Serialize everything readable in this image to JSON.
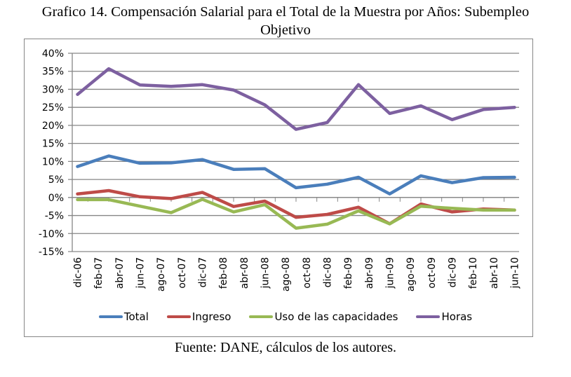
{
  "title_line1": "Grafico 14. Compensación Salarial para el Total de la Muestra por Años: Subempleo",
  "title_line2": "Objetivo",
  "source": "Fuente: DANE, cálculos de los autores.",
  "chart_data": {
    "type": "line",
    "title": "Compensación Salarial para el Total de la Muestra por Años: Subempleo Objetivo",
    "xlabel": "",
    "ylabel": "",
    "ylim": [
      -15,
      40
    ],
    "y_ticks": [
      -15,
      -10,
      -5,
      0,
      5,
      10,
      15,
      20,
      25,
      30,
      35,
      40
    ],
    "y_tick_format": "percent",
    "grid": true,
    "legend_position": "bottom",
    "x_tick_labels": [
      "dic-06",
      "feb-07",
      "abr-07",
      "jun-07",
      "ago-07",
      "oct-07",
      "dic-07",
      "feb-08",
      "abr-08",
      "jun-08",
      "ago-08",
      "oct-08",
      "dic-08",
      "feb-09",
      "abr-09",
      "jun-09",
      "ago-09",
      "oct-09",
      "dic-09",
      "feb-10",
      "abr-10",
      "jun-10"
    ],
    "x_data_months": [
      0,
      3,
      6,
      9,
      12,
      15,
      18,
      21,
      24,
      27,
      30,
      33,
      36,
      39,
      42
    ],
    "x_tick_months_step": 2,
    "x_total_months": 42,
    "series": [
      {
        "name": "Total",
        "color": "#4a7ebb",
        "values": [
          8.6,
          11.5,
          9.5,
          9.6,
          10.5,
          7.8,
          8.0,
          2.7,
          3.7,
          5.6,
          1.0,
          6.0,
          4.1,
          5.5,
          5.6
        ]
      },
      {
        "name": "Ingreso",
        "color": "#be4b48",
        "values": [
          1.0,
          1.9,
          0.2,
          -0.3,
          1.4,
          -2.5,
          -1.0,
          -5.5,
          -4.7,
          -2.7,
          -7.3,
          -1.8,
          -4.0,
          -3.2,
          -3.5
        ]
      },
      {
        "name": "Uso de las capacidades",
        "color": "#98b954",
        "values": [
          -0.6,
          -0.6,
          -2.4,
          -4.2,
          -0.5,
          -4.0,
          -2.0,
          -8.5,
          -7.4,
          -3.7,
          -7.3,
          -2.4,
          -3.0,
          -3.5,
          -3.5
        ]
      },
      {
        "name": "Horas",
        "color": "#7d60a0",
        "values": [
          28.6,
          35.7,
          31.2,
          30.8,
          31.3,
          29.8,
          25.7,
          18.9,
          20.8,
          31.3,
          23.3,
          25.4,
          21.6,
          24.4,
          25.0
        ]
      }
    ]
  }
}
